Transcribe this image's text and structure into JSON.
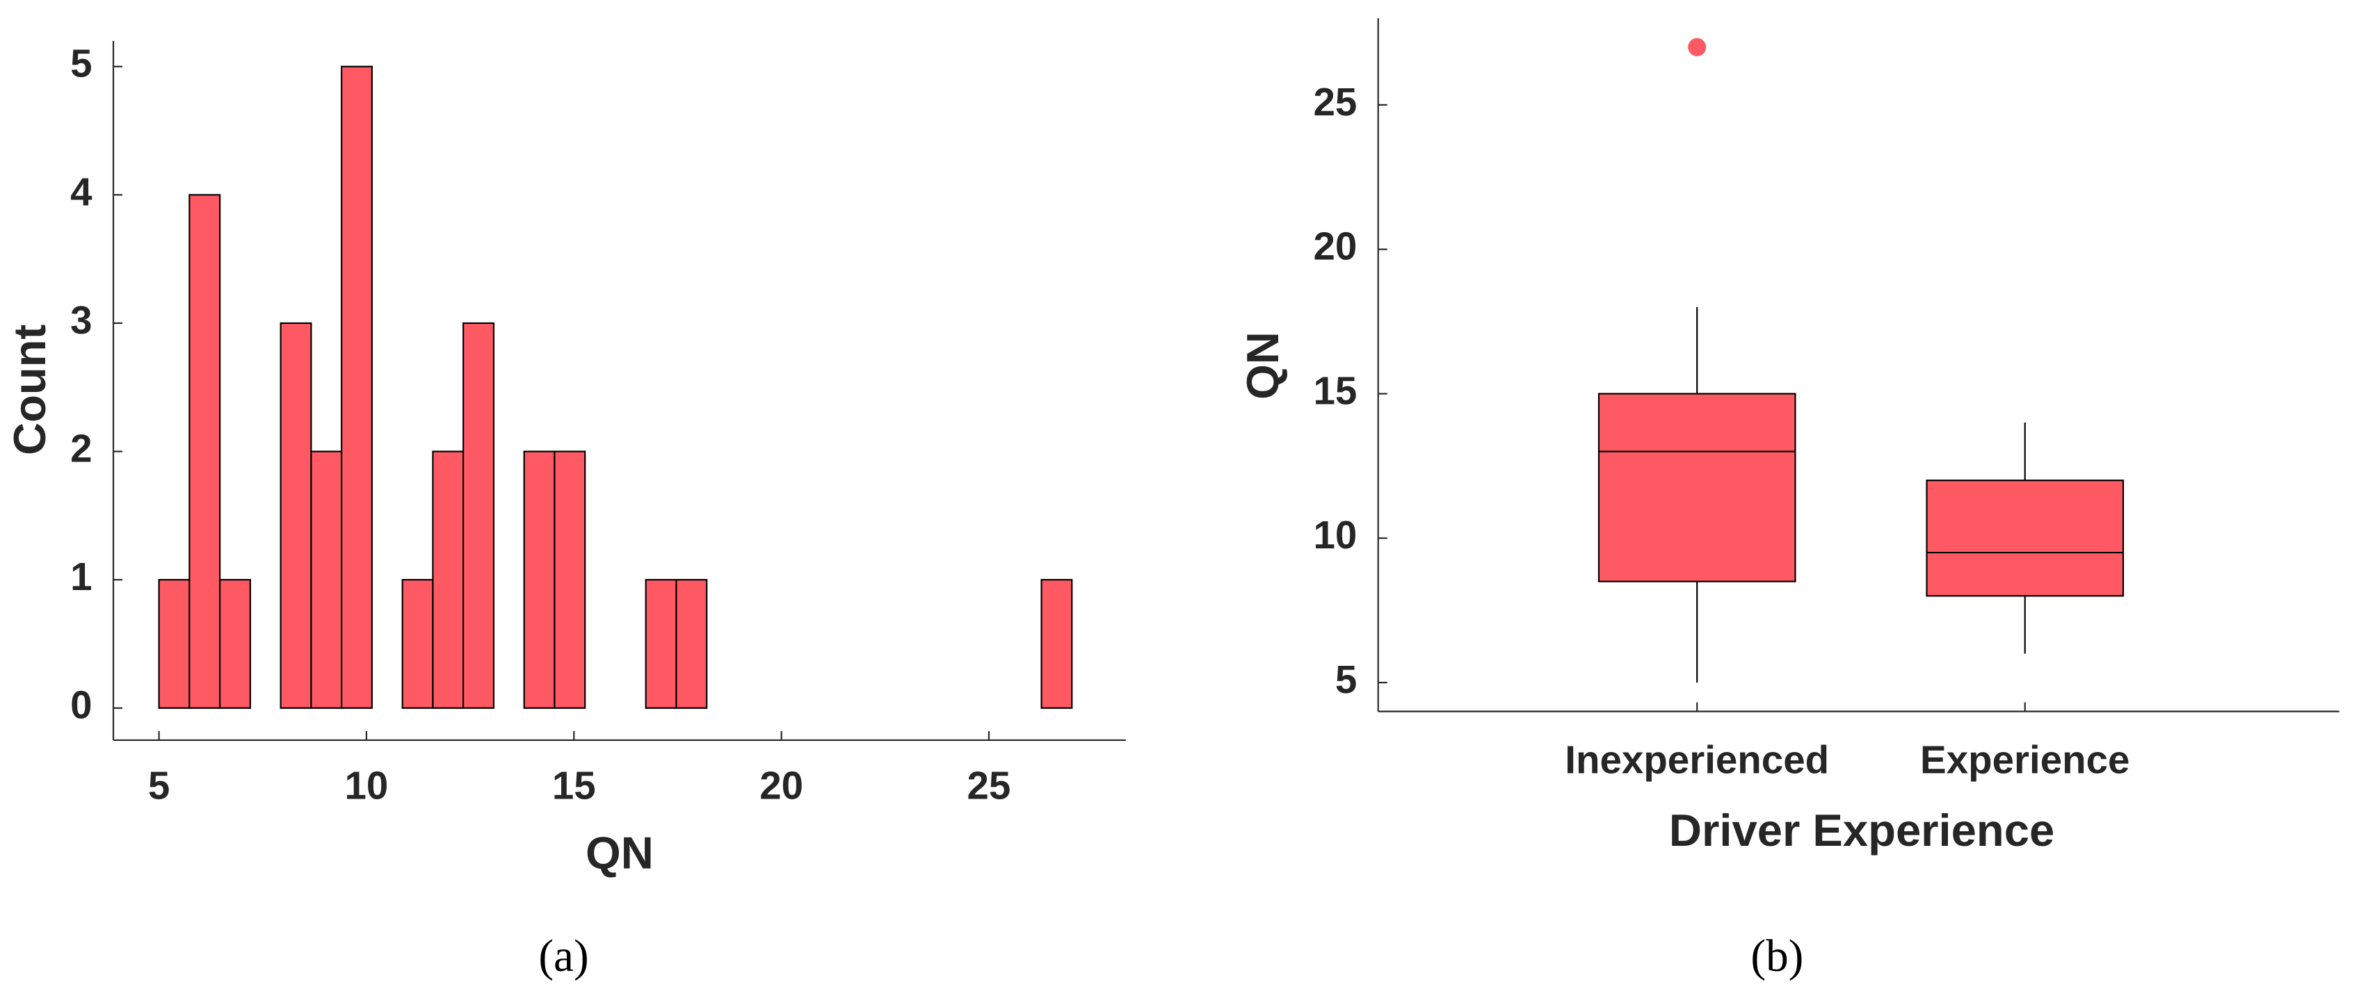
{
  "chart_data": [
    {
      "type": "histogram",
      "caption": "(a)",
      "x_label": "QN",
      "y_label": "Count",
      "color": "#ff5a64",
      "bins": [
        5,
        5.733,
        6.467,
        7.2,
        7.933,
        8.667,
        9.4,
        10.133,
        10.867,
        11.6,
        12.333,
        13.067,
        13.8,
        14.533,
        15.267,
        16,
        16.733,
        17.467,
        18.2,
        18.933,
        19.667,
        20.4,
        21.133,
        21.867,
        22.6,
        23.333,
        24.067,
        24.8,
        25.533,
        26.267,
        27
      ],
      "values": [
        1,
        4,
        1,
        0,
        3,
        2,
        5,
        0,
        1,
        2,
        3,
        0,
        2,
        2,
        0,
        0,
        1,
        1,
        0,
        0,
        0,
        0,
        0,
        0,
        0,
        0,
        0,
        0,
        0,
        1
      ],
      "xlim": [
        3.9,
        28.3
      ],
      "xticks": [
        5,
        10,
        15,
        20,
        25
      ],
      "ylim": [
        -0.25,
        5.2
      ],
      "yticks": [
        0,
        1,
        2,
        3,
        4,
        5
      ]
    },
    {
      "type": "box",
      "caption": "(b)",
      "x_label": "Driver Experience",
      "y_label": "QN",
      "color": "#ff5a64",
      "categories": [
        "Inexperienced",
        "Experience"
      ],
      "low": [
        5,
        6
      ],
      "q1": [
        8.5,
        8
      ],
      "median": [
        13,
        9.5
      ],
      "q3": [
        15,
        12
      ],
      "high": [
        18,
        14
      ],
      "outliers": [
        [
          27
        ],
        []
      ],
      "ylim": [
        4,
        28
      ],
      "yticks": [
        5,
        10,
        15,
        20,
        25
      ]
    }
  ]
}
